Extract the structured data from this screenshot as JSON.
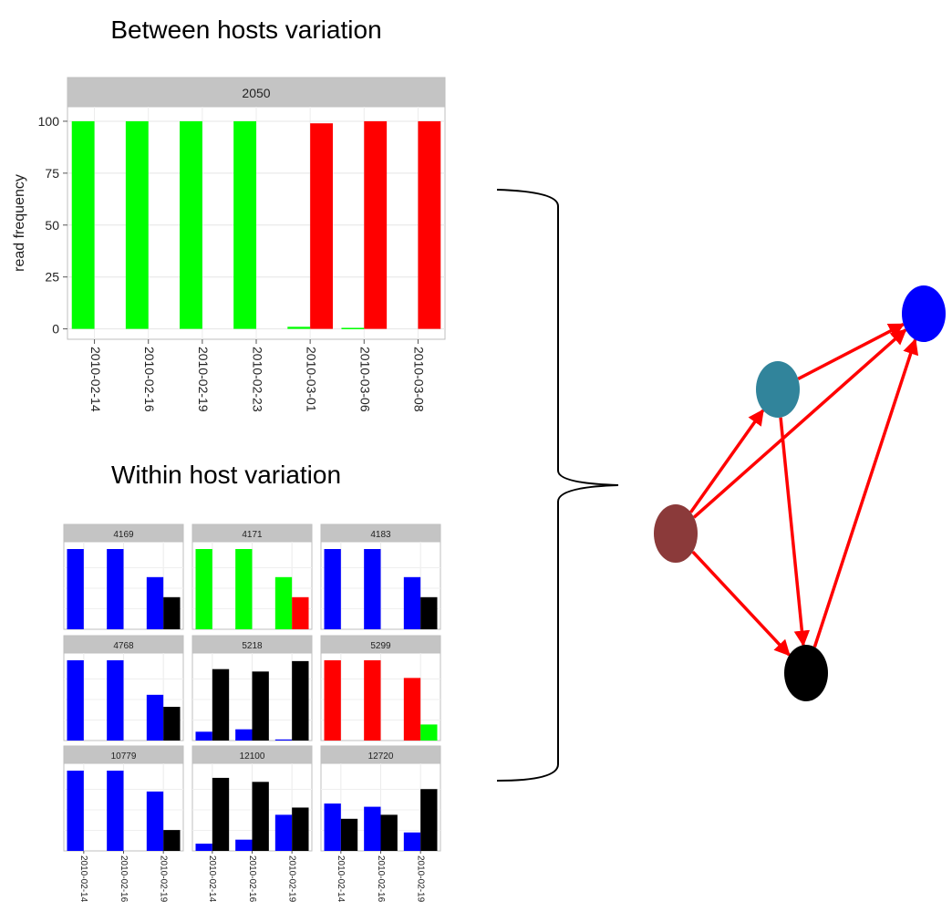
{
  "top": {
    "heading": "Between hosts variation",
    "chart_data": {
      "type": "bar",
      "strip_label": "2050",
      "ylabel": "read frequency",
      "categories": [
        "2010-02-14",
        "2010-02-16",
        "2010-02-19",
        "2010-02-23",
        "2010-03-01",
        "2010-03-06",
        "2010-03-08"
      ],
      "series": [
        {
          "color": "#00ff00",
          "values": [
            100,
            100,
            100,
            100,
            1,
            0.5,
            0
          ]
        },
        {
          "color": "#ff0000",
          "values": [
            0,
            0,
            0,
            0,
            99,
            100,
            100
          ]
        }
      ],
      "yticks": [
        0,
        25,
        50,
        75,
        100
      ],
      "ylim": [
        -5,
        107
      ],
      "grid": true
    }
  },
  "bottom": {
    "heading": "Within host variation",
    "chart_data": {
      "type": "bar",
      "categories": [
        "2010-02-14",
        "2010-02-16",
        "2010-02-19"
      ],
      "ylim": [
        0,
        100
      ],
      "grid": true,
      "panels": [
        {
          "label": "4169",
          "series": [
            {
              "color": "#0000ff",
              "values": [
                100,
                100,
                65
              ]
            },
            {
              "color": "#000000",
              "values": [
                0,
                0,
                40
              ]
            }
          ]
        },
        {
          "label": "4171",
          "series": [
            {
              "color": "#00ff00",
              "values": [
                100,
                100,
                65
              ]
            },
            {
              "color": "#ff0000",
              "values": [
                0,
                0,
                40
              ]
            }
          ]
        },
        {
          "label": "4183",
          "series": [
            {
              "color": "#0000ff",
              "values": [
                100,
                100,
                65
              ]
            },
            {
              "color": "#000000",
              "values": [
                0,
                0,
                40
              ]
            }
          ]
        },
        {
          "label": "4768",
          "series": [
            {
              "color": "#0000ff",
              "values": [
                100,
                100,
                57
              ]
            },
            {
              "color": "#000000",
              "values": [
                0,
                0,
                42
              ]
            }
          ]
        },
        {
          "label": "5218",
          "series": [
            {
              "color": "#0000ff",
              "values": [
                11,
                14,
                1
              ]
            },
            {
              "color": "#000000",
              "values": [
                89,
                86,
                99
              ]
            }
          ]
        },
        {
          "label": "5299",
          "series": [
            {
              "color": "#ff0000",
              "values": [
                100,
                100,
                78
              ]
            },
            {
              "color": "#00ff00",
              "values": [
                0,
                0,
                20
              ]
            }
          ]
        },
        {
          "label": "10779",
          "series": [
            {
              "color": "#0000ff",
              "values": [
                100,
                100,
                74
              ]
            },
            {
              "color": "#000000",
              "values": [
                0,
                0,
                26
              ]
            }
          ]
        },
        {
          "label": "12100",
          "series": [
            {
              "color": "#0000ff",
              "values": [
                9,
                14,
                45
              ]
            },
            {
              "color": "#000000",
              "values": [
                91,
                86,
                54
              ]
            }
          ]
        },
        {
          "label": "12720",
          "series": [
            {
              "color": "#0000ff",
              "values": [
                59,
                55,
                23
              ]
            },
            {
              "color": "#000000",
              "values": [
                40,
                45,
                77
              ]
            }
          ]
        }
      ]
    }
  },
  "network": {
    "node_colors": [
      "#8b3a3a",
      "#31849b",
      "#0000ff",
      "#000000"
    ],
    "edge_color": "#ff0000"
  }
}
